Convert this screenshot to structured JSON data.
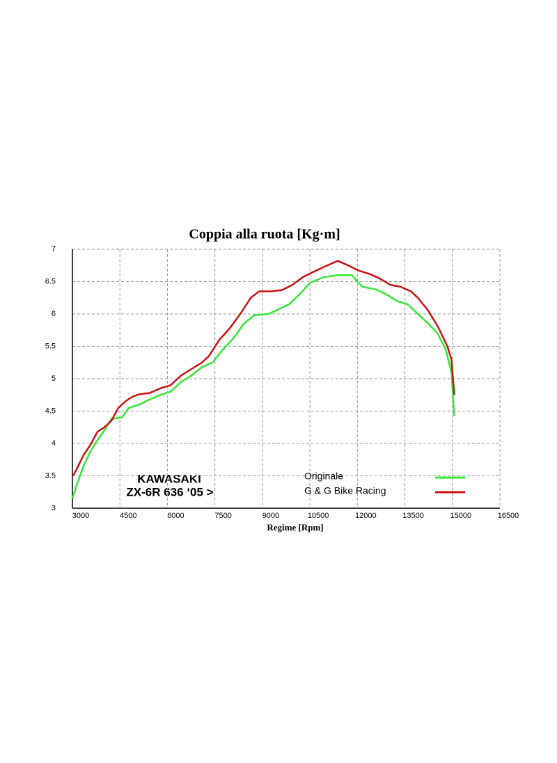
{
  "chart_data": {
    "type": "line",
    "title": "Coppia alla ruota [Kg·m]",
    "x_label": "Regime [Rpm]",
    "annotations": [
      "KAWASAKI",
      "ZX-6R 636 ‘05 >"
    ],
    "xlim": [
      3000,
      16500
    ],
    "xticks": [
      3000,
      4500,
      6000,
      7500,
      9000,
      10500,
      12000,
      13500,
      15000,
      16500
    ],
    "ylim": [
      3,
      7
    ],
    "yticks": [
      3,
      3.5,
      4,
      4.5,
      5,
      5.5,
      6,
      6.5,
      7
    ],
    "grid": true,
    "series": [
      {
        "name": "Originale",
        "color": "#33e833",
        "x": [
          3000,
          3130,
          3350,
          3570,
          3790,
          4010,
          4230,
          4560,
          4780,
          5110,
          5440,
          5770,
          6100,
          6430,
          6760,
          7090,
          7420,
          7750,
          8080,
          8410,
          8740,
          9180,
          9510,
          9840,
          10170,
          10500,
          10940,
          11380,
          11820,
          12150,
          12590,
          12920,
          13250,
          13580,
          13910,
          14240,
          14530,
          14790,
          14970,
          15060
        ],
        "values": [
          3.15,
          3.35,
          3.65,
          3.88,
          4.05,
          4.2,
          4.38,
          4.4,
          4.55,
          4.6,
          4.68,
          4.75,
          4.8,
          4.95,
          5.05,
          5.18,
          5.25,
          5.45,
          5.62,
          5.85,
          5.98,
          6.0,
          6.07,
          6.15,
          6.3,
          6.48,
          6.57,
          6.6,
          6.6,
          6.42,
          6.38,
          6.3,
          6.2,
          6.15,
          6.0,
          5.85,
          5.7,
          5.45,
          5.1,
          4.42
        ]
      },
      {
        "name": "G & G Bike Racing",
        "color": "#cc1111",
        "x": [
          3020,
          3130,
          3350,
          3570,
          3790,
          4010,
          4230,
          4450,
          4670,
          4890,
          5110,
          5440,
          5770,
          6100,
          6430,
          6760,
          7090,
          7310,
          7640,
          7970,
          8300,
          8630,
          8900,
          9290,
          9620,
          9950,
          10280,
          10610,
          11050,
          11380,
          11710,
          12040,
          12370,
          12700,
          13030,
          13360,
          13690,
          13910,
          14240,
          14570,
          14840,
          14970,
          15060
        ],
        "values": [
          3.5,
          3.6,
          3.82,
          3.98,
          4.18,
          4.25,
          4.35,
          4.55,
          4.65,
          4.72,
          4.76,
          4.78,
          4.85,
          4.9,
          5.05,
          5.15,
          5.25,
          5.35,
          5.6,
          5.78,
          6.0,
          6.25,
          6.35,
          6.35,
          6.37,
          6.45,
          6.57,
          6.65,
          6.75,
          6.82,
          6.75,
          6.67,
          6.62,
          6.55,
          6.45,
          6.42,
          6.35,
          6.25,
          6.05,
          5.78,
          5.5,
          5.3,
          4.75
        ]
      }
    ]
  }
}
